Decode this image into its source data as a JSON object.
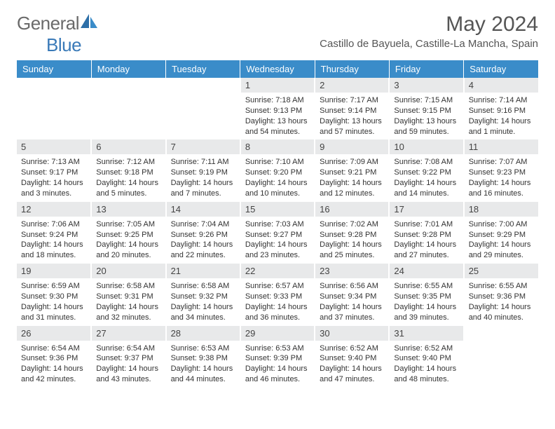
{
  "logo": {
    "text1": "General",
    "text2": "Blue"
  },
  "header": {
    "title": "May 2024",
    "location": "Castillo de Bayuela, Castille-La Mancha, Spain"
  },
  "colors": {
    "header_bg": "#3a8cc9",
    "header_fg": "#ffffff",
    "daynum_bg": "#e8e9ea",
    "logo_gray": "#6a6a6a",
    "logo_blue": "#3a7ab8"
  },
  "day_headers": [
    "Sunday",
    "Monday",
    "Tuesday",
    "Wednesday",
    "Thursday",
    "Friday",
    "Saturday"
  ],
  "weeks": [
    [
      null,
      null,
      null,
      {
        "n": "1",
        "sr": "7:18 AM",
        "ss": "9:13 PM",
        "dl": "13 hours and 54 minutes."
      },
      {
        "n": "2",
        "sr": "7:17 AM",
        "ss": "9:14 PM",
        "dl": "13 hours and 57 minutes."
      },
      {
        "n": "3",
        "sr": "7:15 AM",
        "ss": "9:15 PM",
        "dl": "13 hours and 59 minutes."
      },
      {
        "n": "4",
        "sr": "7:14 AM",
        "ss": "9:16 PM",
        "dl": "14 hours and 1 minute."
      }
    ],
    [
      {
        "n": "5",
        "sr": "7:13 AM",
        "ss": "9:17 PM",
        "dl": "14 hours and 3 minutes."
      },
      {
        "n": "6",
        "sr": "7:12 AM",
        "ss": "9:18 PM",
        "dl": "14 hours and 5 minutes."
      },
      {
        "n": "7",
        "sr": "7:11 AM",
        "ss": "9:19 PM",
        "dl": "14 hours and 7 minutes."
      },
      {
        "n": "8",
        "sr": "7:10 AM",
        "ss": "9:20 PM",
        "dl": "14 hours and 10 minutes."
      },
      {
        "n": "9",
        "sr": "7:09 AM",
        "ss": "9:21 PM",
        "dl": "14 hours and 12 minutes."
      },
      {
        "n": "10",
        "sr": "7:08 AM",
        "ss": "9:22 PM",
        "dl": "14 hours and 14 minutes."
      },
      {
        "n": "11",
        "sr": "7:07 AM",
        "ss": "9:23 PM",
        "dl": "14 hours and 16 minutes."
      }
    ],
    [
      {
        "n": "12",
        "sr": "7:06 AM",
        "ss": "9:24 PM",
        "dl": "14 hours and 18 minutes."
      },
      {
        "n": "13",
        "sr": "7:05 AM",
        "ss": "9:25 PM",
        "dl": "14 hours and 20 minutes."
      },
      {
        "n": "14",
        "sr": "7:04 AM",
        "ss": "9:26 PM",
        "dl": "14 hours and 22 minutes."
      },
      {
        "n": "15",
        "sr": "7:03 AM",
        "ss": "9:27 PM",
        "dl": "14 hours and 23 minutes."
      },
      {
        "n": "16",
        "sr": "7:02 AM",
        "ss": "9:28 PM",
        "dl": "14 hours and 25 minutes."
      },
      {
        "n": "17",
        "sr": "7:01 AM",
        "ss": "9:28 PM",
        "dl": "14 hours and 27 minutes."
      },
      {
        "n": "18",
        "sr": "7:00 AM",
        "ss": "9:29 PM",
        "dl": "14 hours and 29 minutes."
      }
    ],
    [
      {
        "n": "19",
        "sr": "6:59 AM",
        "ss": "9:30 PM",
        "dl": "14 hours and 31 minutes."
      },
      {
        "n": "20",
        "sr": "6:58 AM",
        "ss": "9:31 PM",
        "dl": "14 hours and 32 minutes."
      },
      {
        "n": "21",
        "sr": "6:58 AM",
        "ss": "9:32 PM",
        "dl": "14 hours and 34 minutes."
      },
      {
        "n": "22",
        "sr": "6:57 AM",
        "ss": "9:33 PM",
        "dl": "14 hours and 36 minutes."
      },
      {
        "n": "23",
        "sr": "6:56 AM",
        "ss": "9:34 PM",
        "dl": "14 hours and 37 minutes."
      },
      {
        "n": "24",
        "sr": "6:55 AM",
        "ss": "9:35 PM",
        "dl": "14 hours and 39 minutes."
      },
      {
        "n": "25",
        "sr": "6:55 AM",
        "ss": "9:36 PM",
        "dl": "14 hours and 40 minutes."
      }
    ],
    [
      {
        "n": "26",
        "sr": "6:54 AM",
        "ss": "9:36 PM",
        "dl": "14 hours and 42 minutes."
      },
      {
        "n": "27",
        "sr": "6:54 AM",
        "ss": "9:37 PM",
        "dl": "14 hours and 43 minutes."
      },
      {
        "n": "28",
        "sr": "6:53 AM",
        "ss": "9:38 PM",
        "dl": "14 hours and 44 minutes."
      },
      {
        "n": "29",
        "sr": "6:53 AM",
        "ss": "9:39 PM",
        "dl": "14 hours and 46 minutes."
      },
      {
        "n": "30",
        "sr": "6:52 AM",
        "ss": "9:40 PM",
        "dl": "14 hours and 47 minutes."
      },
      {
        "n": "31",
        "sr": "6:52 AM",
        "ss": "9:40 PM",
        "dl": "14 hours and 48 minutes."
      },
      null
    ]
  ],
  "labels": {
    "sunrise": "Sunrise: ",
    "sunset": "Sunset: ",
    "daylight": "Daylight: "
  }
}
